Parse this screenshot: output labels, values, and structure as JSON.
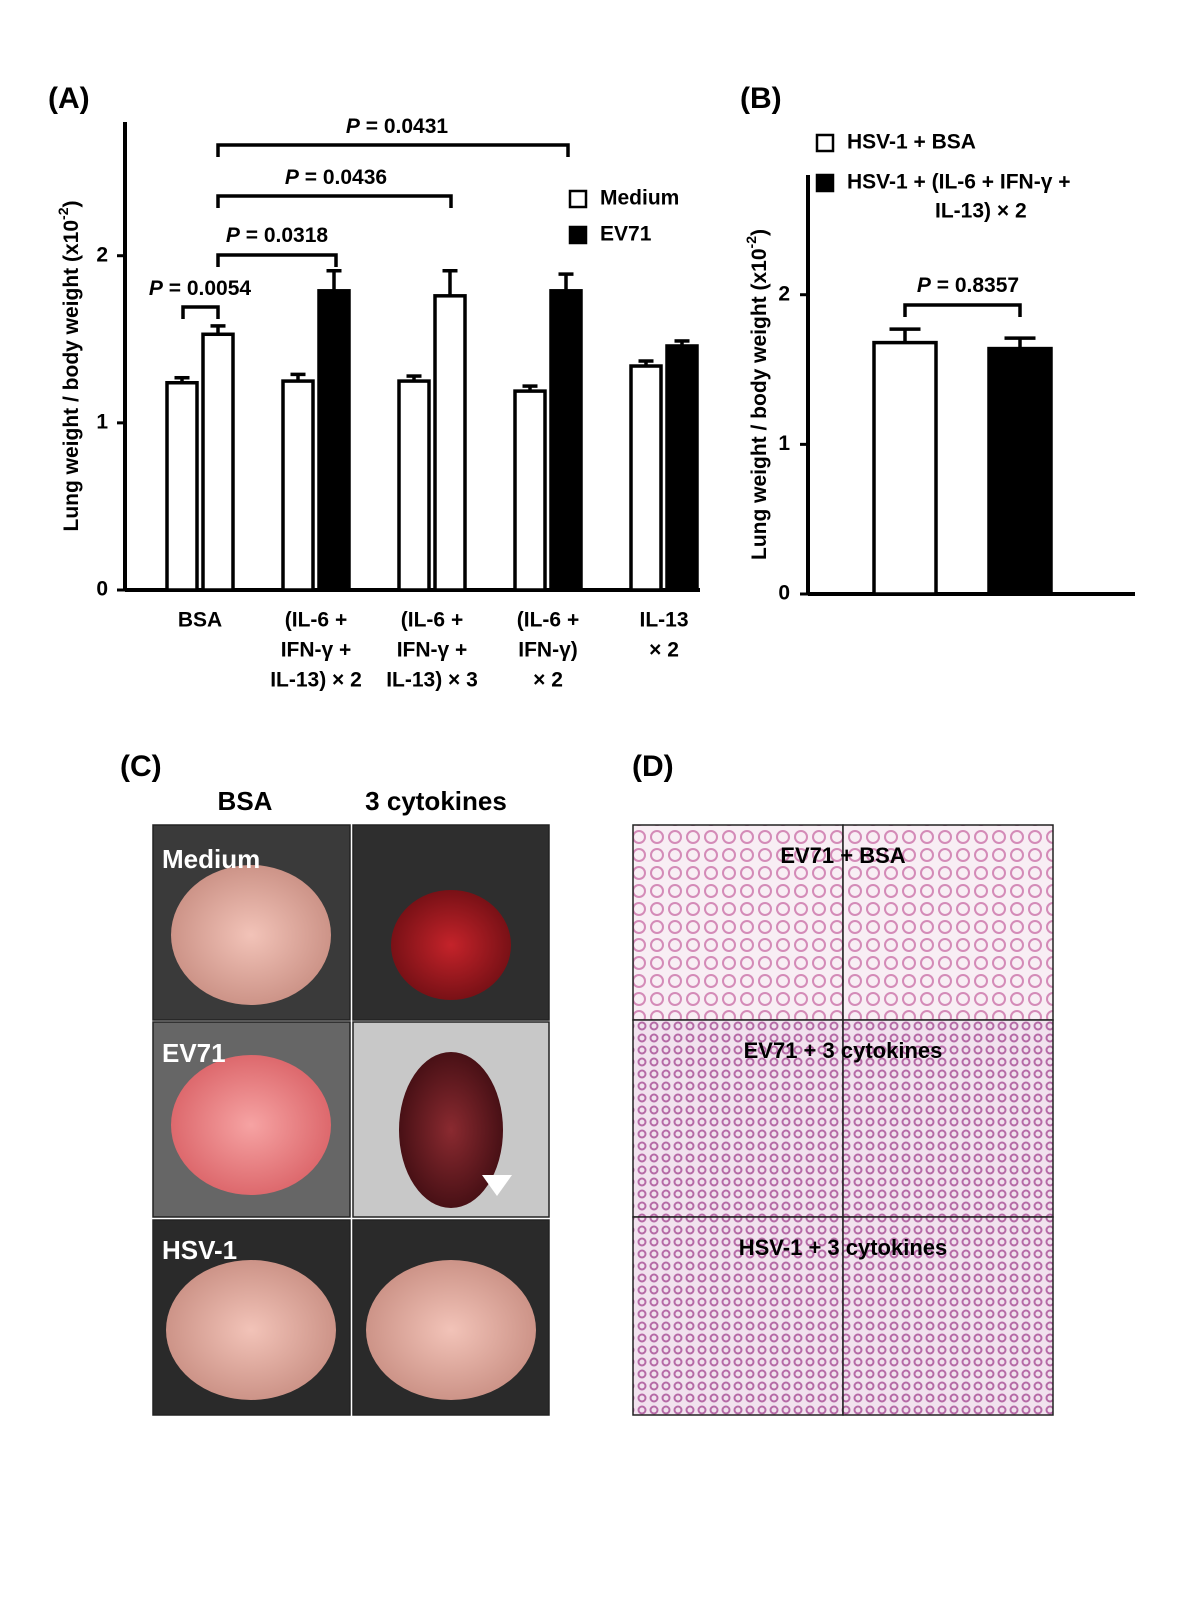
{
  "chart_data": [
    {
      "type": "bar",
      "panel": "(A)",
      "ylabel": [
        "Lung weight / body weight (x10",
        "-2",
        ")"
      ],
      "categories": [
        [
          "BSA"
        ],
        [
          "(IL-6 +",
          "IFN-γ +",
          "IL-13) × 2"
        ],
        [
          "(IL-6 +",
          "IFN-γ +",
          "IL-13) × 3"
        ],
        [
          "(IL-6 +",
          "IFN-γ)",
          "× 2"
        ],
        [
          "IL-13",
          "× 2"
        ]
      ],
      "series": [
        {
          "name": [
            "Medium"
          ],
          "color": "#ffffff",
          "colors": [
            "#ffffff",
            "#ffffff",
            "#ffffff",
            "#ffffff",
            "#ffffff"
          ],
          "values": [
            1.24,
            1.25,
            1.25,
            1.19,
            1.34
          ],
          "errors": [
            0.03,
            0.04,
            0.03,
            0.03,
            0.03
          ]
        },
        {
          "name": [
            "EV71"
          ],
          "color": "#000000",
          "colors": [
            "#ffffff",
            "#000000",
            "#ffffff",
            "#000000",
            "#000000"
          ],
          "values": [
            1.53,
            1.79,
            1.76,
            1.79,
            1.46
          ],
          "errors": [
            0.05,
            0.12,
            0.15,
            0.1,
            0.03
          ]
        }
      ],
      "annotations": [
        [
          "P",
          "= 0.0054"
        ],
        [
          "P",
          "= 0.0318"
        ],
        [
          "P",
          "= 0.0436"
        ],
        [
          "P",
          "= 0.0431"
        ]
      ],
      "ylim": [
        0,
        2.8
      ],
      "yticks": [
        0,
        1,
        2
      ]
    },
    {
      "type": "bar",
      "panel": "(B)",
      "ylabel": [
        "Lung weight / body weight (x10",
        "-2",
        ")"
      ],
      "series": [
        {
          "name": [
            "HSV-1 + BSA"
          ],
          "color": "#ffffff",
          "values": [
            1.68
          ],
          "errors": [
            0.09
          ]
        },
        {
          "name": [
            "HSV-1 + (IL-6 + IFN-γ +",
            "IL-13) × 2"
          ],
          "color": "#000000",
          "values": [
            1.64
          ],
          "errors": [
            0.07
          ]
        }
      ],
      "annotations": [
        [
          "P",
          "= 0.8357"
        ]
      ],
      "ylim": [
        0,
        2.8
      ],
      "yticks": [
        0,
        1,
        2
      ]
    }
  ],
  "panel_c": {
    "label": "(C)",
    "columns": [
      "BSA",
      "3 cytokines"
    ],
    "rows": [
      "Medium",
      "EV71",
      "HSV-1"
    ]
  },
  "panel_d": {
    "label": "(D)",
    "rows": [
      "EV71 + BSA",
      "EV71 + 3 cytokines",
      "HSV-1 + 3 cytokines"
    ]
  }
}
